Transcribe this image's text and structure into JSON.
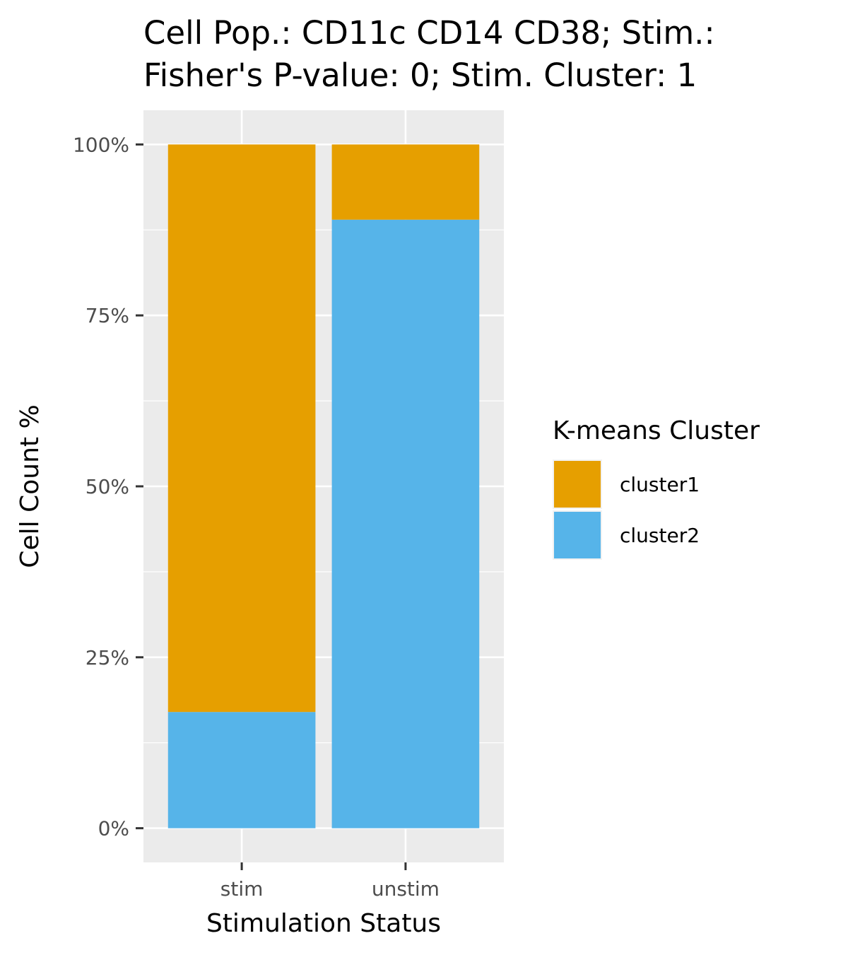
{
  "chart_data": {
    "type": "bar",
    "stacked": true,
    "title_lines": [
      "Cell Pop.: CD11c CD14 CD38; Stim.:",
      "Fisher's P-value: 0; Stim. Cluster: 1"
    ],
    "xlabel": "Stimulation Status",
    "ylabel": "Cell Count %",
    "categories": [
      "stim",
      "unstim"
    ],
    "series": [
      {
        "name": "cluster2",
        "color": "#56B4E9",
        "values": [
          17,
          89
        ]
      },
      {
        "name": "cluster1",
        "color": "#E69F00",
        "values": [
          83,
          11
        ]
      }
    ],
    "ylim": [
      -5,
      105
    ],
    "y_ticks": [
      0,
      25,
      50,
      75,
      100
    ],
    "y_tick_labels": [
      "0%",
      "25%",
      "50%",
      "75%",
      "100%"
    ],
    "legend": {
      "title": "K-means Cluster",
      "position": "right",
      "items": [
        {
          "label": "cluster1",
          "color": "#E69F00"
        },
        {
          "label": "cluster2",
          "color": "#56B4E9"
        }
      ]
    },
    "grid": true,
    "panel_background": "#EBEBEB",
    "gridline_color": "#FFFFFF"
  }
}
